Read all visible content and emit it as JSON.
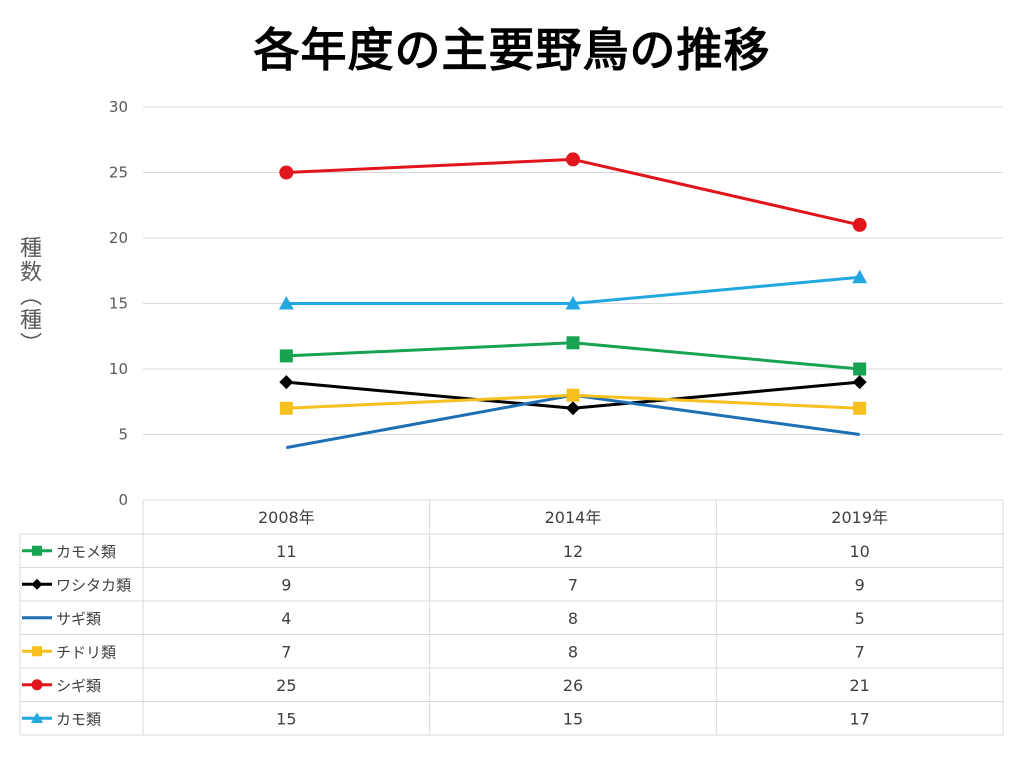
{
  "chart_data": {
    "type": "line",
    "title": "各年度の主要野鳥の推移",
    "ylabel": "種数（種）",
    "categories": [
      "2008年",
      "2014年",
      "2019年"
    ],
    "ylim": [
      0,
      30
    ],
    "yticks": [
      "0",
      "5",
      "10",
      "15",
      "20",
      "25",
      "30"
    ],
    "grid": true,
    "legend": "data-table",
    "series": [
      {
        "name": "カモメ類",
        "values": [
          11,
          12,
          10
        ],
        "color": "#17a352",
        "marker": "square"
      },
      {
        "name": "ワシタカ類",
        "values": [
          9,
          7,
          9
        ],
        "color": "#000000",
        "marker": "diamond"
      },
      {
        "name": "サギ類",
        "values": [
          4,
          8,
          5
        ],
        "color": "#1f6fb4",
        "marker": "none"
      },
      {
        "name": "チドリ類",
        "values": [
          7,
          8,
          7
        ],
        "color": "#f6c020",
        "marker": "square"
      },
      {
        "name": "シギ類",
        "values": [
          25,
          26,
          21
        ],
        "color": "#e0161c",
        "marker": "circle"
      },
      {
        "name": "カモ類",
        "values": [
          15,
          15,
          17
        ],
        "color": "#22a8e0",
        "marker": "triangle"
      }
    ]
  }
}
